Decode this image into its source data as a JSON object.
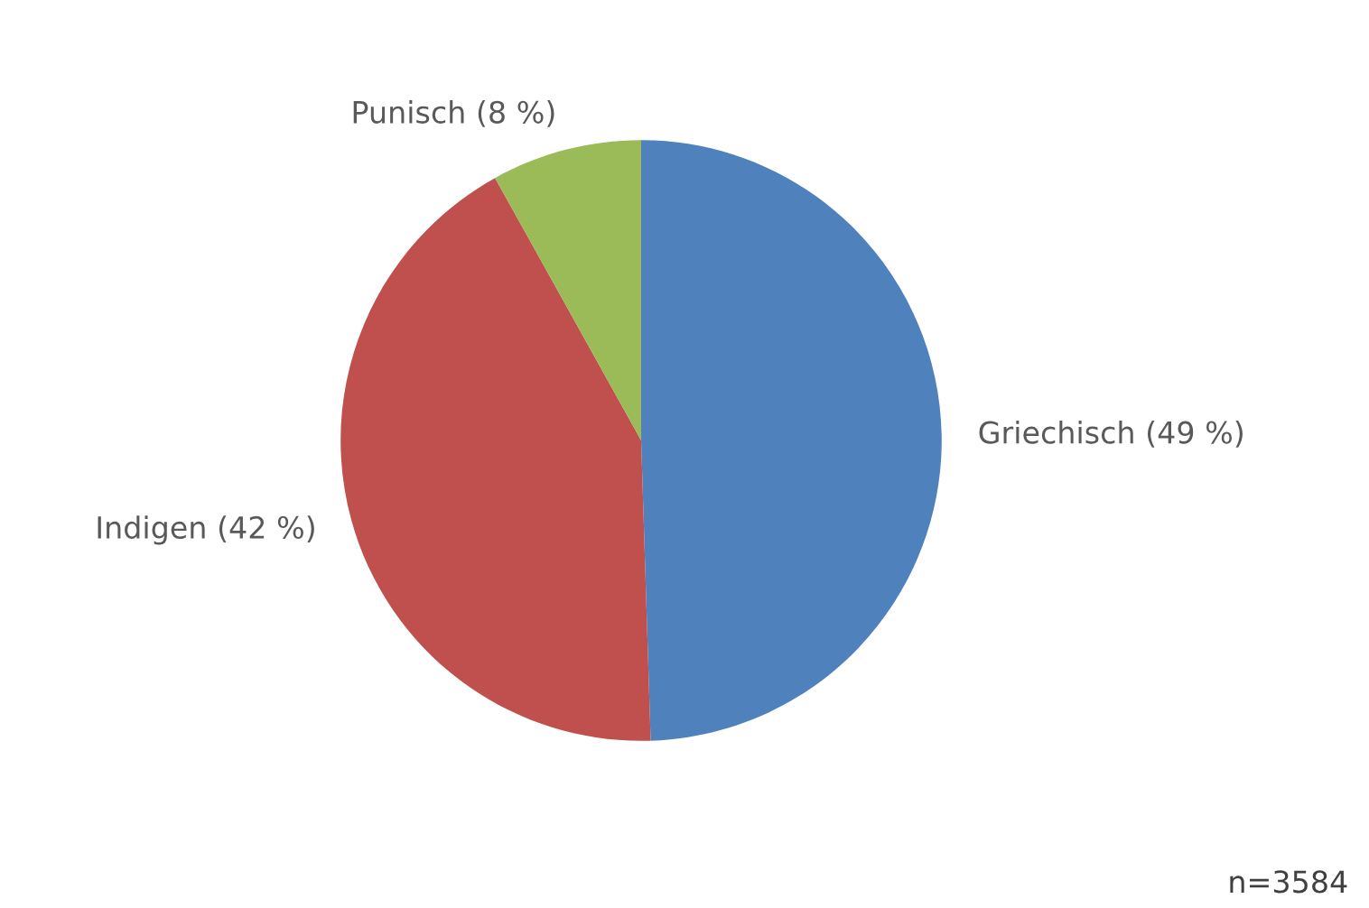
{
  "chart_data": {
    "type": "pie",
    "categories": [
      "Griechisch (49 %)",
      "Indigen (42 %)",
      "Punisch (8 %)"
    ],
    "values": [
      49,
      42,
      8
    ],
    "colors": [
      "#4f81bd",
      "#c0504d",
      "#9bbb59"
    ],
    "annotations": [
      "n=3584"
    ],
    "legend": false
  }
}
